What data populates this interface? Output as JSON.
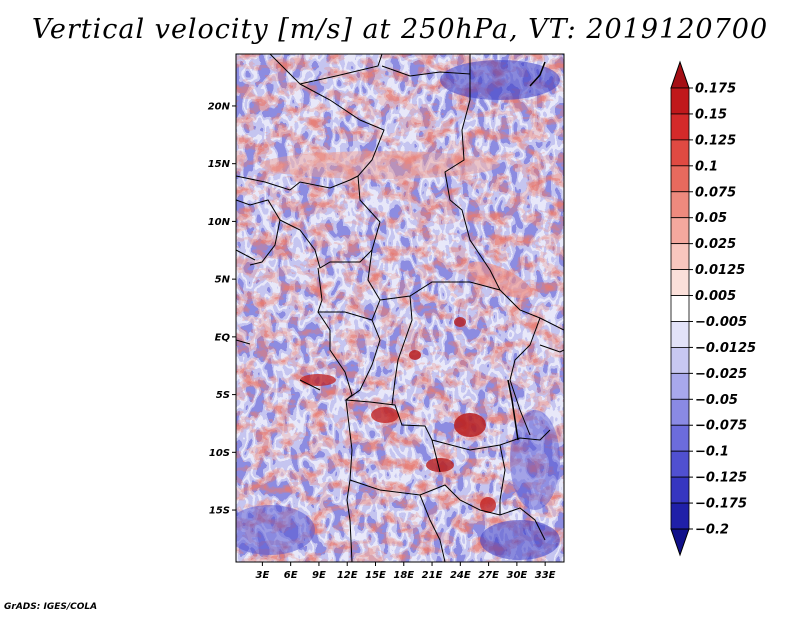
{
  "title": "Vertical velocity [m/s] at 250hPa, VT: 2019120700",
  "footer": "GrADS: IGES/COLA",
  "map": {
    "lat_labels": [
      {
        "label": "20N",
        "lat": 20
      },
      {
        "label": "15N",
        "lat": 15
      },
      {
        "label": "10N",
        "lat": 10
      },
      {
        "label": "5N",
        "lat": 5
      },
      {
        "label": "EQ",
        "lat": 0
      },
      {
        "label": "5S",
        "lat": -5
      },
      {
        "label": "10S",
        "lat": -10
      },
      {
        "label": "15S",
        "lat": -15
      }
    ],
    "lon_labels": [
      {
        "label": "3E",
        "lon": 3
      },
      {
        "label": "6E",
        "lon": 6
      },
      {
        "label": "9E",
        "lon": 9
      },
      {
        "label": "12E",
        "lon": 12
      },
      {
        "label": "15E",
        "lon": 15
      },
      {
        "label": "18E",
        "lon": 18
      },
      {
        "label": "21E",
        "lon": 21
      },
      {
        "label": "24E",
        "lon": 24
      },
      {
        "label": "27E",
        "lon": 27
      },
      {
        "label": "30E",
        "lon": 30
      },
      {
        "label": "33E",
        "lon": 33
      }
    ],
    "lon_range": [
      0.2,
      35
    ],
    "lat_range": [
      -19.5,
      24.5
    ]
  },
  "colorbar": {
    "labels": [
      "0.175",
      "0.15",
      "0.125",
      "0.1",
      "0.075",
      "0.05",
      "0.025",
      "0.0125",
      "0.005",
      "−0.005",
      "−0.0125",
      "−0.025",
      "−0.05",
      "−0.075",
      "−0.1",
      "−0.125",
      "−0.175",
      "−0.2"
    ],
    "colors": [
      "#a50f15",
      "#c0181b",
      "#d42a2a",
      "#e04a42",
      "#e86a5e",
      "#ee8a7e",
      "#f4a89e",
      "#f8c6be",
      "#fbe0da",
      "#ffffff",
      "#e2e2f8",
      "#c8c8f2",
      "#a8a8ec",
      "#8a8ae4",
      "#6c6cdc",
      "#5050d0",
      "#3636c0",
      "#2020a8",
      "#10108a"
    ]
  }
}
